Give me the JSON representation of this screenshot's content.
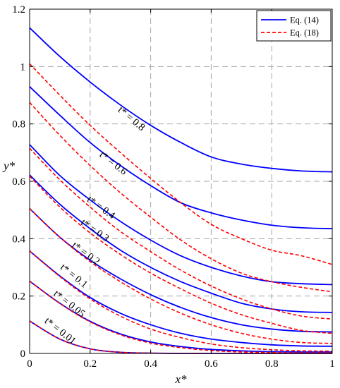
{
  "chart_data": {
    "type": "line",
    "xlabel": "x*",
    "ylabel": "y*",
    "xlim": [
      0,
      1
    ],
    "ylim": [
      0,
      1.2
    ],
    "x_ticks": [
      "0",
      "0.2",
      "0.4",
      "0.6",
      "0.8",
      "1"
    ],
    "y_ticks": [
      "0",
      "0.2",
      "0.4",
      "0.6",
      "0.8",
      "1",
      "1.2"
    ],
    "grid": true,
    "legend_position": "top-right",
    "legend": [
      {
        "label": "Eq. (14)",
        "color": "#0000ff",
        "style": "solid"
      },
      {
        "label": "Eq. (18)",
        "color": "#ff0000",
        "style": "dashed"
      }
    ],
    "x": [
      0,
      0.1,
      0.2,
      0.3,
      0.4,
      0.5,
      0.6,
      0.7,
      0.8,
      0.9,
      1.0
    ],
    "series": [
      {
        "t_label": "t* = 0.8",
        "equation": "Eq. (14)",
        "values": [
          1.135,
          1.035,
          0.946,
          0.866,
          0.795,
          0.735,
          0.685,
          0.66,
          0.645,
          0.636,
          0.633
        ]
      },
      {
        "t_label": "t* = 0.8",
        "equation": "Eq. (18)",
        "values": [
          1.01,
          0.9,
          0.795,
          0.7,
          0.61,
          0.525,
          0.45,
          0.4,
          0.36,
          0.34,
          0.31
        ]
      },
      {
        "t_label": "t* = 0.6",
        "equation": "Eq. (14)",
        "values": [
          0.93,
          0.83,
          0.735,
          0.655,
          0.585,
          0.525,
          0.49,
          0.465,
          0.447,
          0.438,
          0.435
        ]
      },
      {
        "t_label": "t* = 0.6",
        "equation": "Eq. (18)",
        "values": [
          0.875,
          0.76,
          0.655,
          0.56,
          0.475,
          0.395,
          0.33,
          0.28,
          0.25,
          0.23,
          0.215
        ]
      },
      {
        "t_label": "t* = 0.4",
        "equation": "Eq. (14)",
        "values": [
          0.728,
          0.62,
          0.535,
          0.46,
          0.395,
          0.34,
          0.3,
          0.27,
          0.25,
          0.243,
          0.24
        ]
      },
      {
        "t_label": "t* = 0.4",
        "equation": "Eq. (18)",
        "values": [
          0.715,
          0.605,
          0.51,
          0.425,
          0.355,
          0.29,
          0.235,
          0.19,
          0.155,
          0.13,
          0.12
        ]
      },
      {
        "t_label": "t* = 0.3",
        "equation": "Eq. (14)",
        "values": [
          0.622,
          0.52,
          0.435,
          0.36,
          0.3,
          0.25,
          0.21,
          0.175,
          0.155,
          0.145,
          0.143
        ]
      },
      {
        "t_label": "t* = 0.3",
        "equation": "Eq. (18)",
        "values": [
          0.618,
          0.51,
          0.42,
          0.345,
          0.28,
          0.225,
          0.175,
          0.135,
          0.105,
          0.08,
          0.07
        ]
      },
      {
        "t_label": "t* = 0.2",
        "equation": "Eq. (14)",
        "values": [
          0.505,
          0.405,
          0.325,
          0.26,
          0.205,
          0.16,
          0.125,
          0.1,
          0.085,
          0.077,
          0.075
        ]
      },
      {
        "t_label": "t* = 0.2",
        "equation": "Eq. (18)",
        "values": [
          0.505,
          0.405,
          0.32,
          0.25,
          0.19,
          0.14,
          0.1,
          0.07,
          0.05,
          0.038,
          0.035
        ]
      },
      {
        "t_label": "t* = 0.1",
        "equation": "Eq. (14)",
        "values": [
          0.357,
          0.27,
          0.195,
          0.14,
          0.1,
          0.07,
          0.05,
          0.038,
          0.03,
          0.026,
          0.025
        ]
      },
      {
        "t_label": "t* = 0.1",
        "equation": "Eq. (18)",
        "values": [
          0.357,
          0.268,
          0.19,
          0.13,
          0.085,
          0.055,
          0.033,
          0.02,
          0.013,
          0.009,
          0.008
        ]
      },
      {
        "t_label": "t* = 0.05",
        "equation": "Eq. (14)",
        "values": [
          0.252,
          0.175,
          0.112,
          0.068,
          0.04,
          0.024,
          0.014,
          0.009,
          0.006,
          0.005,
          0.005
        ]
      },
      {
        "t_label": "t* = 0.05",
        "equation": "Eq. (18)",
        "values": [
          0.252,
          0.174,
          0.11,
          0.065,
          0.036,
          0.02,
          0.01,
          0.005,
          0.003,
          0.002,
          0.002
        ]
      },
      {
        "t_label": "t* = 0.01",
        "equation": "Eq. (14)",
        "values": [
          0.113,
          0.05,
          0.016,
          0.004,
          0.001,
          0,
          0,
          0,
          0,
          0,
          0
        ]
      },
      {
        "t_label": "t* = 0.01",
        "equation": "Eq. (18)",
        "values": [
          0.113,
          0.05,
          0.016,
          0.004,
          0.001,
          0,
          0,
          0,
          0,
          0,
          0
        ]
      }
    ],
    "annotations": [
      {
        "text": "t* = 0.8",
        "x": 0.33,
        "y": 0.81,
        "angle": 40
      },
      {
        "text": "t* = 0.6",
        "x": 0.27,
        "y": 0.655,
        "angle": 38
      },
      {
        "text": "t* = 0.4",
        "x": 0.23,
        "y": 0.5,
        "angle": 36
      },
      {
        "text": "t* = 0.3",
        "x": 0.21,
        "y": 0.42,
        "angle": 35
      },
      {
        "text": "t* = 0.2",
        "x": 0.18,
        "y": 0.34,
        "angle": 36
      },
      {
        "text": "t* = 0.1",
        "x": 0.14,
        "y": 0.262,
        "angle": 39
      },
      {
        "text": "t* = 0.05",
        "x": 0.125,
        "y": 0.165,
        "angle": 38
      },
      {
        "text": "t* = 0.01",
        "x": 0.095,
        "y": 0.07,
        "angle": 38
      }
    ]
  }
}
